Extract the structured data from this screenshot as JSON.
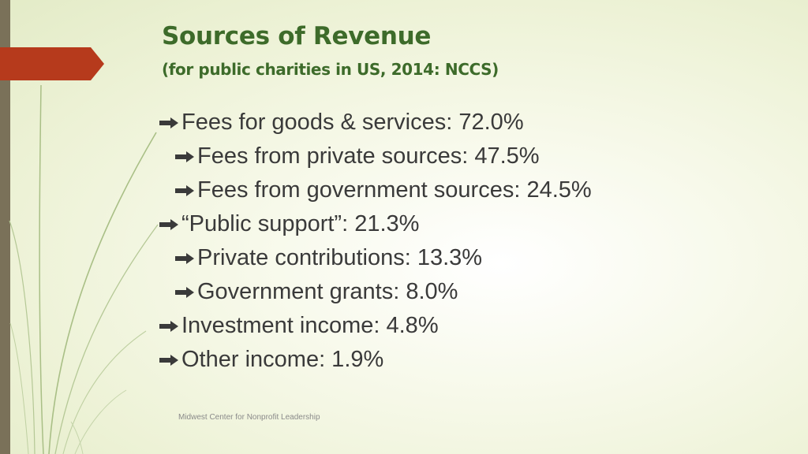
{
  "slide": {
    "title": "Sources of Revenue",
    "subtitle": "(for public charities in US, 2014: NCCS)",
    "footer": "Midwest Center for Nonprofit Leadership"
  },
  "bullets": [
    {
      "text": "Fees for goods & services: 72.0%",
      "level": 1
    },
    {
      "text": "Fees from private sources: 47.5%",
      "level": 2
    },
    {
      "text": "Fees from government sources: 24.5%",
      "level": 2
    },
    {
      "text": "“Public support”: 21.3%",
      "level": 1
    },
    {
      "text": "Private contributions: 13.3%",
      "level": 2
    },
    {
      "text": "Government grants: 8.0%",
      "level": 2
    },
    {
      "text": "Investment income: 4.8%",
      "level": 1
    },
    {
      "text": "Other income: 1.9%",
      "level": 1
    }
  ],
  "colors": {
    "title": "#3d6b2a",
    "accent_tab": "#b63a1c",
    "left_bar": "#7a7159",
    "body_text": "#3a3a3a",
    "stems": "#a9bf86"
  },
  "icons": {
    "bullet": "right-arrow-bullet-icon"
  }
}
